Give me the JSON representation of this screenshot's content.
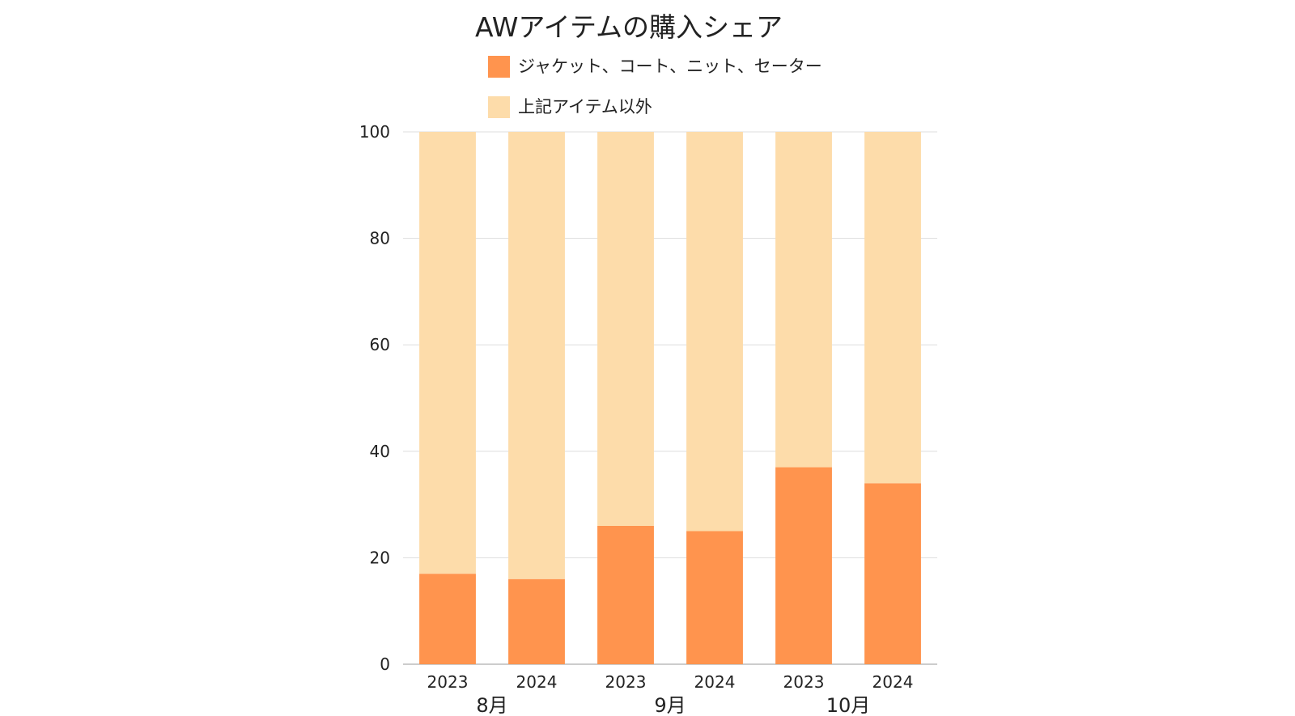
{
  "chart_data": {
    "type": "bar",
    "stacked": true,
    "title": "AWアイテムの購入シェア",
    "categories": [
      "2023",
      "2024",
      "2023",
      "2024",
      "2023",
      "2024"
    ],
    "groups": [
      {
        "label": "8月",
        "categories": [
          "2023",
          "2024"
        ]
      },
      {
        "label": "9月",
        "categories": [
          "2023",
          "2024"
        ]
      },
      {
        "label": "10月",
        "categories": [
          "2023",
          "2024"
        ]
      }
    ],
    "series": [
      {
        "name": "ジャケット、コート、ニット、セーター",
        "color": "#ff944e",
        "values": [
          17,
          16,
          26,
          25,
          37,
          34
        ]
      },
      {
        "name": "上記アイテム以外",
        "color": "#fddcaa",
        "values": [
          83,
          84,
          74,
          75,
          63,
          66
        ]
      }
    ],
    "ylim": [
      0,
      100
    ],
    "yticks": [
      0,
      20,
      40,
      60,
      80,
      100
    ],
    "xlabel": "",
    "ylabel": "",
    "grid": true,
    "legend_position": "top"
  }
}
